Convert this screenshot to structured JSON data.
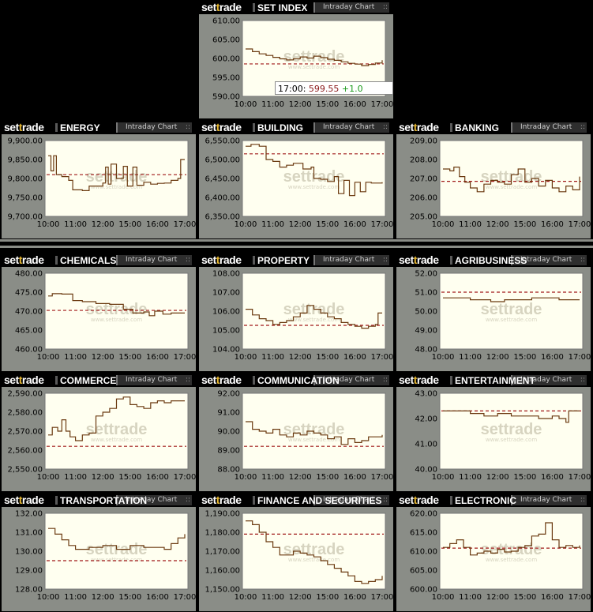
{
  "brand": {
    "pre": "set",
    "t": "t",
    "post": "rade"
  },
  "button_label": "Intraday Chart",
  "watermark": {
    "main": "settrade",
    "sub": "www.settrade.com"
  },
  "colors": {
    "line": "#6b3a10",
    "ref": "#a01818",
    "plot_bg": "#fffff0",
    "panel_bg": "#8a8d87"
  },
  "tooltip": {
    "time": "17:00:",
    "value": "599.55",
    "change": "+1.0"
  },
  "xticks": [
    "10:00",
    "11:00",
    "12:00",
    "15:00",
    "16:00",
    "17:00"
  ],
  "charts": [
    {
      "name": "SET INDEX",
      "yticks": [
        "610.00",
        "605.00",
        "600.00",
        "595.00",
        "590.00"
      ],
      "ylim": [
        590,
        610
      ],
      "prev_close": 598.55,
      "series": [
        [
          0,
          602.5
        ],
        [
          0.05,
          601.8
        ],
        [
          0.1,
          601.2
        ],
        [
          0.15,
          600.8
        ],
        [
          0.2,
          600.3
        ],
        [
          0.25,
          599.9
        ],
        [
          0.3,
          599.6
        ],
        [
          0.35,
          599.9
        ],
        [
          0.4,
          600.4
        ],
        [
          0.45,
          600.1
        ],
        [
          0.5,
          600.6
        ],
        [
          0.55,
          600.2
        ],
        [
          0.6,
          599.8
        ],
        [
          0.65,
          599.5
        ],
        [
          0.7,
          599.1
        ],
        [
          0.75,
          598.7
        ],
        [
          0.8,
          598.5
        ],
        [
          0.85,
          598.1
        ],
        [
          0.9,
          598.4
        ],
        [
          0.95,
          598.8
        ],
        [
          1,
          599.55
        ]
      ]
    },
    {
      "name": "ENERGY",
      "yticks": [
        "9,900.00",
        "9,850.00",
        "9,800.00",
        "9,750.00",
        "9,700.00"
      ],
      "ylim": [
        9700,
        9900
      ],
      "prev_close": 9810,
      "series": [
        [
          0,
          9860
        ],
        [
          0.02,
          9820
        ],
        [
          0.04,
          9860
        ],
        [
          0.06,
          9810
        ],
        [
          0.1,
          9805
        ],
        [
          0.15,
          9795
        ],
        [
          0.18,
          9770
        ],
        [
          0.25,
          9768
        ],
        [
          0.3,
          9780
        ],
        [
          0.4,
          9788
        ],
        [
          0.42,
          9830
        ],
        [
          0.44,
          9785
        ],
        [
          0.46,
          9838
        ],
        [
          0.5,
          9800
        ],
        [
          0.55,
          9832
        ],
        [
          0.58,
          9780
        ],
        [
          0.62,
          9830
        ],
        [
          0.65,
          9782
        ],
        [
          0.7,
          9790
        ],
        [
          0.75,
          9785
        ],
        [
          0.8,
          9787
        ],
        [
          0.85,
          9788
        ],
        [
          0.9,
          9795
        ],
        [
          0.95,
          9800
        ],
        [
          0.97,
          9850
        ],
        [
          1,
          9850
        ]
      ]
    },
    {
      "name": "BUILDING",
      "yticks": [
        "6,550.00",
        "6,500.00",
        "6,450.00",
        "6,400.00",
        "6,350.00"
      ],
      "ylim": [
        6350,
        6550
      ],
      "prev_close": 6515,
      "series": [
        [
          0,
          6535
        ],
        [
          0.04,
          6540
        ],
        [
          0.1,
          6535
        ],
        [
          0.15,
          6500
        ],
        [
          0.2,
          6495
        ],
        [
          0.25,
          6480
        ],
        [
          0.3,
          6485
        ],
        [
          0.35,
          6490
        ],
        [
          0.42,
          6475
        ],
        [
          0.48,
          6480
        ],
        [
          0.5,
          6450
        ],
        [
          0.55,
          6448
        ],
        [
          0.6,
          6442
        ],
        [
          0.65,
          6455
        ],
        [
          0.68,
          6410
        ],
        [
          0.72,
          6445
        ],
        [
          0.76,
          6405
        ],
        [
          0.8,
          6440
        ],
        [
          0.84,
          6415
        ],
        [
          0.88,
          6440
        ],
        [
          0.92,
          6438
        ],
        [
          1,
          6440
        ]
      ]
    },
    {
      "name": "BANKING",
      "yticks": [
        "209.00",
        "208.00",
        "207.00",
        "206.00",
        "205.00"
      ],
      "ylim": [
        205,
        209
      ],
      "prev_close": 206.85,
      "series": [
        [
          0,
          207.5
        ],
        [
          0.05,
          207.4
        ],
        [
          0.08,
          207.6
        ],
        [
          0.12,
          207.1
        ],
        [
          0.16,
          206.8
        ],
        [
          0.2,
          206.5
        ],
        [
          0.25,
          206.3
        ],
        [
          0.3,
          206.7
        ],
        [
          0.35,
          206.9
        ],
        [
          0.4,
          206.8
        ],
        [
          0.45,
          206.7
        ],
        [
          0.5,
          207.2
        ],
        [
          0.55,
          207.5
        ],
        [
          0.6,
          206.8
        ],
        [
          0.65,
          207.0
        ],
        [
          0.7,
          206.6
        ],
        [
          0.75,
          206.9
        ],
        [
          0.8,
          206.5
        ],
        [
          0.85,
          206.3
        ],
        [
          0.9,
          206.6
        ],
        [
          0.95,
          206.4
        ],
        [
          1,
          207.1
        ]
      ]
    },
    {
      "name": "CHEMICALS",
      "yticks": [
        "480.00",
        "475.00",
        "470.00",
        "465.00",
        "460.00"
      ],
      "ylim": [
        460,
        480
      ],
      "prev_close": 470.2,
      "series": [
        [
          0,
          474.0
        ],
        [
          0.03,
          474.6
        ],
        [
          0.1,
          474.5
        ],
        [
          0.18,
          472.8
        ],
        [
          0.25,
          472.5
        ],
        [
          0.35,
          472.0
        ],
        [
          0.45,
          471.8
        ],
        [
          0.55,
          470.5
        ],
        [
          0.62,
          469.5
        ],
        [
          0.7,
          469.8
        ],
        [
          0.74,
          468.8
        ],
        [
          0.78,
          470.0
        ],
        [
          0.84,
          469.2
        ],
        [
          0.9,
          469.5
        ],
        [
          1,
          469.5
        ]
      ]
    },
    {
      "name": "PROPERTY",
      "yticks": [
        "108.00",
        "107.00",
        "106.00",
        "105.00",
        "104.00"
      ],
      "ylim": [
        104,
        108
      ],
      "prev_close": 105.25,
      "series": [
        [
          0,
          106.1
        ],
        [
          0.05,
          105.8
        ],
        [
          0.1,
          105.6
        ],
        [
          0.15,
          105.5
        ],
        [
          0.2,
          105.3
        ],
        [
          0.25,
          105.4
        ],
        [
          0.3,
          105.5
        ],
        [
          0.35,
          105.7
        ],
        [
          0.4,
          105.9
        ],
        [
          0.45,
          106.3
        ],
        [
          0.5,
          106.1
        ],
        [
          0.55,
          105.9
        ],
        [
          0.6,
          105.7
        ],
        [
          0.65,
          105.6
        ],
        [
          0.7,
          105.4
        ],
        [
          0.75,
          105.3
        ],
        [
          0.8,
          105.2
        ],
        [
          0.85,
          105.1
        ],
        [
          0.9,
          105.2
        ],
        [
          0.95,
          105.3
        ],
        [
          0.97,
          105.9
        ],
        [
          1,
          105.9
        ]
      ]
    },
    {
      "name": "AGRIBUSINESS",
      "yticks": [
        "52.00",
        "51.00",
        "50.00",
        "49.00",
        "48.00"
      ],
      "ylim": [
        48,
        52
      ],
      "prev_close": 51.0,
      "series": [
        [
          0,
          50.7
        ],
        [
          0.1,
          50.7
        ],
        [
          0.2,
          50.6
        ],
        [
          0.3,
          50.6
        ],
        [
          0.35,
          50.5
        ],
        [
          0.45,
          50.6
        ],
        [
          0.55,
          50.6
        ],
        [
          0.65,
          50.7
        ],
        [
          0.75,
          50.7
        ],
        [
          0.85,
          50.6
        ],
        [
          0.95,
          50.6
        ],
        [
          1,
          50.6
        ]
      ]
    },
    {
      "name": "COMMERCE",
      "yticks": [
        "2,590.00",
        "2,580.00",
        "2,570.00",
        "2,560.00",
        "2,550.00"
      ],
      "ylim": [
        2550,
        2590
      ],
      "prev_close": 2562,
      "series": [
        [
          0,
          2568
        ],
        [
          0.03,
          2572
        ],
        [
          0.07,
          2570
        ],
        [
          0.1,
          2576
        ],
        [
          0.13,
          2570
        ],
        [
          0.16,
          2567
        ],
        [
          0.2,
          2565
        ],
        [
          0.25,
          2568
        ],
        [
          0.3,
          2569
        ],
        [
          0.35,
          2578
        ],
        [
          0.4,
          2580
        ],
        [
          0.45,
          2582
        ],
        [
          0.5,
          2587
        ],
        [
          0.55,
          2588
        ],
        [
          0.6,
          2584
        ],
        [
          0.65,
          2583
        ],
        [
          0.7,
          2582
        ],
        [
          0.75,
          2585
        ],
        [
          0.8,
          2586
        ],
        [
          0.85,
          2585
        ],
        [
          0.9,
          2586
        ],
        [
          1,
          2586
        ]
      ]
    },
    {
      "name": "COMMUNICATION",
      "yticks": [
        "92.00",
        "91.00",
        "90.00",
        "89.00",
        "88.00"
      ],
      "ylim": [
        88,
        92
      ],
      "prev_close": 89.2,
      "series": [
        [
          0,
          90.5
        ],
        [
          0.05,
          90.1
        ],
        [
          0.1,
          90.0
        ],
        [
          0.15,
          89.9
        ],
        [
          0.2,
          90.1
        ],
        [
          0.25,
          89.8
        ],
        [
          0.3,
          89.7
        ],
        [
          0.35,
          89.9
        ],
        [
          0.4,
          89.8
        ],
        [
          0.45,
          90.0
        ],
        [
          0.5,
          89.9
        ],
        [
          0.55,
          89.8
        ],
        [
          0.6,
          89.6
        ],
        [
          0.65,
          89.7
        ],
        [
          0.7,
          89.3
        ],
        [
          0.75,
          89.6
        ],
        [
          0.8,
          89.4
        ],
        [
          0.85,
          89.5
        ],
        [
          0.9,
          89.7
        ],
        [
          1,
          89.8
        ]
      ]
    },
    {
      "name": "ENTERTAINMENT",
      "yticks": [
        "43.00",
        "42.00",
        "41.00",
        "40.00"
      ],
      "ylim": [
        40,
        43
      ],
      "prev_close": 42.3,
      "series": [
        [
          0,
          42.3
        ],
        [
          0.1,
          42.3
        ],
        [
          0.2,
          42.2
        ],
        [
          0.3,
          42.1
        ],
        [
          0.4,
          42.2
        ],
        [
          0.5,
          42.1
        ],
        [
          0.6,
          42.1
        ],
        [
          0.7,
          42.0
        ],
        [
          0.8,
          42.1
        ],
        [
          0.85,
          42.0
        ],
        [
          0.9,
          41.85
        ],
        [
          0.92,
          42.3
        ],
        [
          1,
          42.3
        ]
      ]
    },
    {
      "name": "TRANSPORTATION",
      "yticks": [
        "132.00",
        "131.00",
        "130.00",
        "129.00",
        "128.00"
      ],
      "ylim": [
        128,
        132
      ],
      "prev_close": 129.5,
      "series": [
        [
          0,
          131.2
        ],
        [
          0.05,
          130.9
        ],
        [
          0.1,
          130.6
        ],
        [
          0.15,
          130.3
        ],
        [
          0.2,
          130.1
        ],
        [
          0.3,
          130.2
        ],
        [
          0.4,
          130.3
        ],
        [
          0.5,
          130.1
        ],
        [
          0.6,
          130.3
        ],
        [
          0.7,
          130.2
        ],
        [
          0.8,
          130.2
        ],
        [
          0.85,
          130.1
        ],
        [
          0.9,
          130.4
        ],
        [
          0.95,
          130.7
        ],
        [
          1,
          130.9
        ]
      ]
    },
    {
      "name": "FINANCE AND SECURITIES",
      "yticks": [
        "1,190.00",
        "1,180.00",
        "1,170.00",
        "1,160.00",
        "1,150.00"
      ],
      "ylim": [
        1150,
        1190
      ],
      "prev_close": 1179,
      "series": [
        [
          0,
          1186
        ],
        [
          0.05,
          1184
        ],
        [
          0.1,
          1180
        ],
        [
          0.15,
          1175
        ],
        [
          0.2,
          1172
        ],
        [
          0.25,
          1168
        ],
        [
          0.3,
          1168
        ],
        [
          0.35,
          1170
        ],
        [
          0.4,
          1169
        ],
        [
          0.45,
          1168
        ],
        [
          0.5,
          1167
        ],
        [
          0.55,
          1165
        ],
        [
          0.6,
          1163
        ],
        [
          0.65,
          1161
        ],
        [
          0.7,
          1159
        ],
        [
          0.75,
          1157
        ],
        [
          0.8,
          1154
        ],
        [
          0.85,
          1153
        ],
        [
          0.9,
          1154
        ],
        [
          0.95,
          1155
        ],
        [
          1,
          1157
        ]
      ]
    },
    {
      "name": "ELECTRONIC",
      "yticks": [
        "620.00",
        "615.00",
        "610.00",
        "605.00",
        "600.00"
      ],
      "ylim": [
        600,
        620
      ],
      "prev_close": 610.8,
      "series": [
        [
          0,
          611
        ],
        [
          0.05,
          612
        ],
        [
          0.1,
          613
        ],
        [
          0.15,
          611
        ],
        [
          0.2,
          609
        ],
        [
          0.25,
          609.5
        ],
        [
          0.3,
          610
        ],
        [
          0.35,
          609.5
        ],
        [
          0.4,
          610.5
        ],
        [
          0.45,
          609.8
        ],
        [
          0.5,
          610
        ],
        [
          0.55,
          611
        ],
        [
          0.6,
          611.5
        ],
        [
          0.65,
          614
        ],
        [
          0.7,
          614.5
        ],
        [
          0.75,
          617.5
        ],
        [
          0.8,
          613
        ],
        [
          0.85,
          611
        ],
        [
          0.9,
          611.5
        ],
        [
          0.95,
          611.0
        ],
        [
          1,
          611.5
        ]
      ]
    }
  ]
}
